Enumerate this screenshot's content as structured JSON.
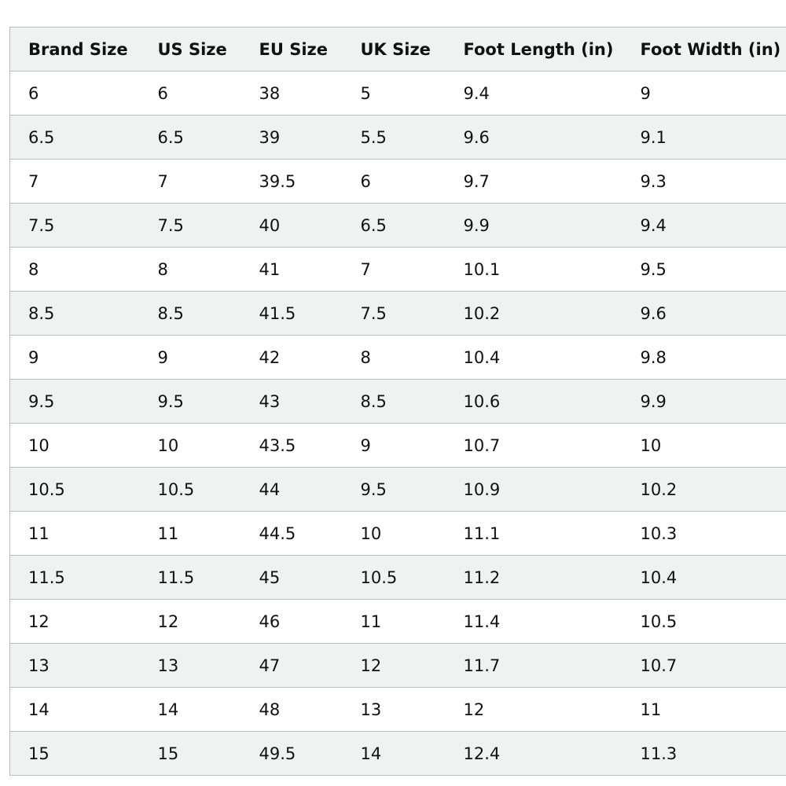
{
  "size_chart": {
    "columns": [
      "Brand Size",
      "US Size",
      "EU Size",
      "UK Size",
      "Foot Length (in)",
      "Foot Width (in)"
    ],
    "rows": [
      [
        "6",
        "6",
        "38",
        "5",
        "9.4",
        "9"
      ],
      [
        "6.5",
        "6.5",
        "39",
        "5.5",
        "9.6",
        "9.1"
      ],
      [
        "7",
        "7",
        "39.5",
        "6",
        "9.7",
        "9.3"
      ],
      [
        "7.5",
        "7.5",
        "40",
        "6.5",
        "9.9",
        "9.4"
      ],
      [
        "8",
        "8",
        "41",
        "7",
        "10.1",
        "9.5"
      ],
      [
        "8.5",
        "8.5",
        "41.5",
        "7.5",
        "10.2",
        "9.6"
      ],
      [
        "9",
        "9",
        "42",
        "8",
        "10.4",
        "9.8"
      ],
      [
        "9.5",
        "9.5",
        "43",
        "8.5",
        "10.6",
        "9.9"
      ],
      [
        "10",
        "10",
        "43.5",
        "9",
        "10.7",
        "10"
      ],
      [
        "10.5",
        "10.5",
        "44",
        "9.5",
        "10.9",
        "10.2"
      ],
      [
        "11",
        "11",
        "44.5",
        "10",
        "11.1",
        "10.3"
      ],
      [
        "11.5",
        "11.5",
        "45",
        "10.5",
        "11.2",
        "10.4"
      ],
      [
        "12",
        "12",
        "46",
        "11",
        "11.4",
        "10.5"
      ],
      [
        "13",
        "13",
        "47",
        "12",
        "11.7",
        "10.7"
      ],
      [
        "14",
        "14",
        "48",
        "13",
        "12",
        "11"
      ],
      [
        "15",
        "15",
        "49.5",
        "14",
        "12.4",
        "11.3"
      ]
    ]
  },
  "colors": {
    "header_background": "#f0f2f2",
    "stripe_background": "#f0f2f2",
    "row_background": "#ffffff",
    "border": "#b9bcbe",
    "text": "#111111"
  }
}
